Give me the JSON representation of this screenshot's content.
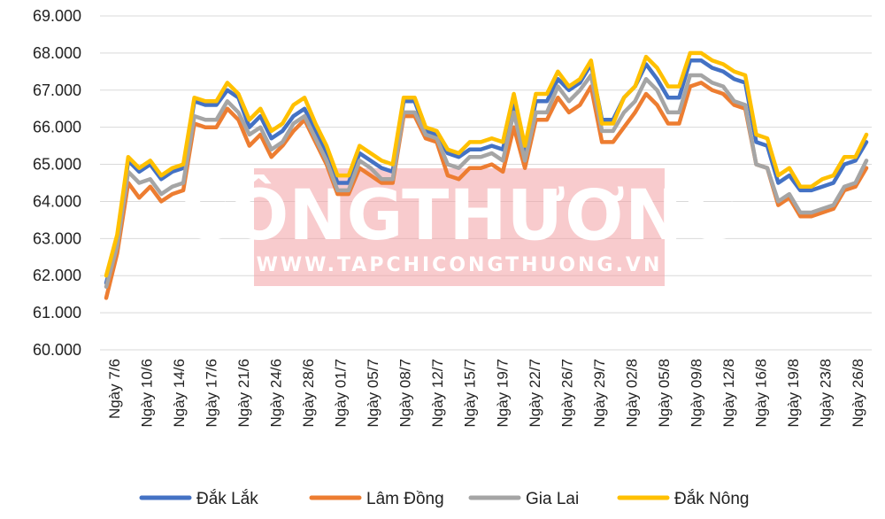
{
  "watermark": {
    "title": "CÔNGTHƯƠNG",
    "url": "WWW.TAPCHICONGTHUONG.VN"
  },
  "chart_data": {
    "type": "line",
    "title": "",
    "xlabel": "",
    "ylabel": "",
    "ylim": [
      60000,
      69000
    ],
    "yticks": [
      "60.000",
      "61.000",
      "62.000",
      "63.000",
      "64.000",
      "65.000",
      "66.000",
      "67.000",
      "68.000",
      "69.000"
    ],
    "grid": true,
    "legend": "bottom",
    "x_tick_labels": [
      "Ngày 7/6",
      "Ngày 10/6",
      "Ngày 14/6",
      "Ngày 17/6",
      "Ngày 21/6",
      "Ngày 24/6",
      "Ngày 28/6",
      "Ngày 01/7",
      "Ngày 05/7",
      "Ngày 08/7",
      "Ngày 12/7",
      "Ngày 15/7",
      "Ngày 19/7",
      "Ngày 22/7",
      "Ngày 26/7",
      "Ngày 29/7",
      "Ngày 02/8",
      "Ngày 05/8",
      "Ngày 09/8",
      "Ngày 12/8",
      "Ngày 16/8",
      "Ngày 19/8",
      "Ngày 23/8",
      "Ngày 26/8"
    ],
    "series": [
      {
        "name": "Đắk Lắk",
        "color": "#4472C4",
        "values": [
          61800,
          62900,
          65100,
          64800,
          65000,
          64600,
          64800,
          64900,
          66700,
          66600,
          66600,
          67000,
          66800,
          66000,
          66300,
          65700,
          65900,
          66300,
          66500,
          65900,
          65300,
          64500,
          64500,
          65300,
          65100,
          64900,
          64800,
          66700,
          66700,
          65900,
          65800,
          65300,
          65200,
          65400,
          65400,
          65500,
          65400,
          66700,
          65300,
          66700,
          66700,
          67300,
          67000,
          67200,
          67700,
          66200,
          66200,
          66800,
          67100,
          67700,
          67300,
          66800,
          66800,
          67800,
          67800,
          67600,
          67500,
          67300,
          67200,
          65600,
          65500,
          64500,
          64700,
          64300,
          64300,
          64400,
          64500,
          65000,
          65100,
          65600
        ]
      },
      {
        "name": "Lâm Đồng",
        "color": "#ED7D31",
        "values": [
          61400,
          62600,
          64500,
          64100,
          64400,
          64000,
          64200,
          64300,
          66100,
          66000,
          66000,
          66500,
          66200,
          65500,
          65800,
          65200,
          65500,
          65900,
          66200,
          65600,
          65000,
          64200,
          64200,
          64900,
          64700,
          64500,
          64500,
          66300,
          66300,
          65700,
          65600,
          64700,
          64600,
          64900,
          64900,
          65000,
          64800,
          66000,
          64900,
          66200,
          66200,
          66800,
          66400,
          66600,
          67100,
          65600,
          65600,
          66000,
          66400,
          66900,
          66600,
          66100,
          66100,
          67100,
          67200,
          67000,
          66900,
          66600,
          66500,
          65000,
          64900,
          63900,
          64100,
          63600,
          63600,
          63700,
          63800,
          64300,
          64400,
          64900
        ]
      },
      {
        "name": "Gia Lai",
        "color": "#A5A5A5",
        "values": [
          61700,
          62800,
          64800,
          64500,
          64600,
          64200,
          64400,
          64500,
          66300,
          66200,
          66200,
          66700,
          66400,
          65800,
          66000,
          65400,
          65600,
          66100,
          66300,
          65700,
          65100,
          64300,
          64300,
          65100,
          64900,
          64600,
          64600,
          66400,
          66400,
          65800,
          65700,
          65000,
          64900,
          65200,
          65200,
          65300,
          65100,
          66400,
          65100,
          66400,
          66400,
          67100,
          66700,
          67000,
          67400,
          65900,
          65900,
          66400,
          66700,
          67300,
          67000,
          66400,
          66400,
          67400,
          67400,
          67200,
          67100,
          66700,
          66600,
          65000,
          64900,
          64000,
          64200,
          63700,
          63700,
          63800,
          63900,
          64400,
          64500,
          65100
        ]
      },
      {
        "name": "Đắk Nông",
        "color": "#FFC000",
        "values": [
          62000,
          63100,
          65200,
          64900,
          65100,
          64700,
          64900,
          65000,
          66800,
          66700,
          66700,
          67200,
          66900,
          66200,
          66500,
          65900,
          66100,
          66600,
          66800,
          66100,
          65500,
          64700,
          64700,
          65500,
          65300,
          65100,
          65000,
          66800,
          66800,
          66000,
          65900,
          65400,
          65300,
          65600,
          65600,
          65700,
          65600,
          66900,
          65500,
          66900,
          66900,
          67500,
          67100,
          67300,
          67800,
          66100,
          66100,
          66800,
          67100,
          67900,
          67600,
          67100,
          67100,
          68000,
          68000,
          67800,
          67700,
          67500,
          67400,
          65800,
          65700,
          64700,
          64900,
          64400,
          64400,
          64600,
          64700,
          65200,
          65200,
          65800
        ]
      }
    ]
  }
}
